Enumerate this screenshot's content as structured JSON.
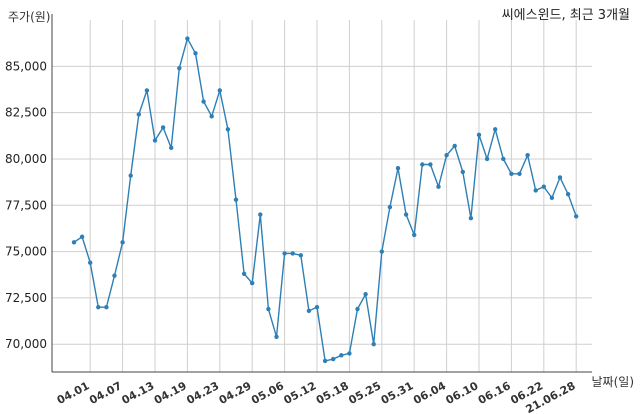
{
  "chart_data": {
    "type": "line",
    "title": "씨에스윈드, 최근 3개월",
    "ylabel": "주가(원)",
    "xlabel": "날짜(일)",
    "ylim": [
      68500,
      87500
    ],
    "yticks": [
      70000,
      72500,
      75000,
      77500,
      80000,
      82500,
      85000
    ],
    "ytick_labels": [
      "70,000",
      "72,500",
      "75,000",
      "77,500",
      "80,000",
      "82,500",
      "85,000"
    ],
    "grid": true,
    "line_color": "#2e7fb5",
    "xtick_labels": [
      {
        "index": 2,
        "label": "04.01"
      },
      {
        "index": 6,
        "label": "04.07"
      },
      {
        "index": 10,
        "label": "04.13"
      },
      {
        "index": 14,
        "label": "04.19"
      },
      {
        "index": 18,
        "label": "04.23"
      },
      {
        "index": 22,
        "label": "04.29"
      },
      {
        "index": 26,
        "label": "05.06"
      },
      {
        "index": 30,
        "label": "05.12"
      },
      {
        "index": 34,
        "label": "05.18"
      },
      {
        "index": 38,
        "label": "05.25"
      },
      {
        "index": 42,
        "label": "05.31"
      },
      {
        "index": 46,
        "label": "06.04"
      },
      {
        "index": 50,
        "label": "06.10"
      },
      {
        "index": 54,
        "label": "06.16"
      },
      {
        "index": 58,
        "label": "06.22"
      },
      {
        "index": 62,
        "label": "21.06.28"
      }
    ],
    "values": [
      75500,
      75800,
      74400,
      72000,
      72000,
      73700,
      75500,
      79100,
      82400,
      83700,
      81000,
      81700,
      80600,
      84900,
      86500,
      85700,
      83100,
      82300,
      83700,
      81600,
      77800,
      73800,
      73300,
      77000,
      71900,
      70400,
      74900,
      74900,
      74800,
      71800,
      72000,
      69100,
      69200,
      69400,
      69500,
      71900,
      72700,
      70000,
      75000,
      77400,
      79500,
      77000,
      75900,
      79700,
      79700,
      78500,
      80200,
      80700,
      79300,
      76800,
      81300,
      80000,
      81600,
      80000,
      79200,
      79200,
      80200,
      78300,
      78500,
      77900,
      79000,
      78100,
      76900
    ]
  }
}
